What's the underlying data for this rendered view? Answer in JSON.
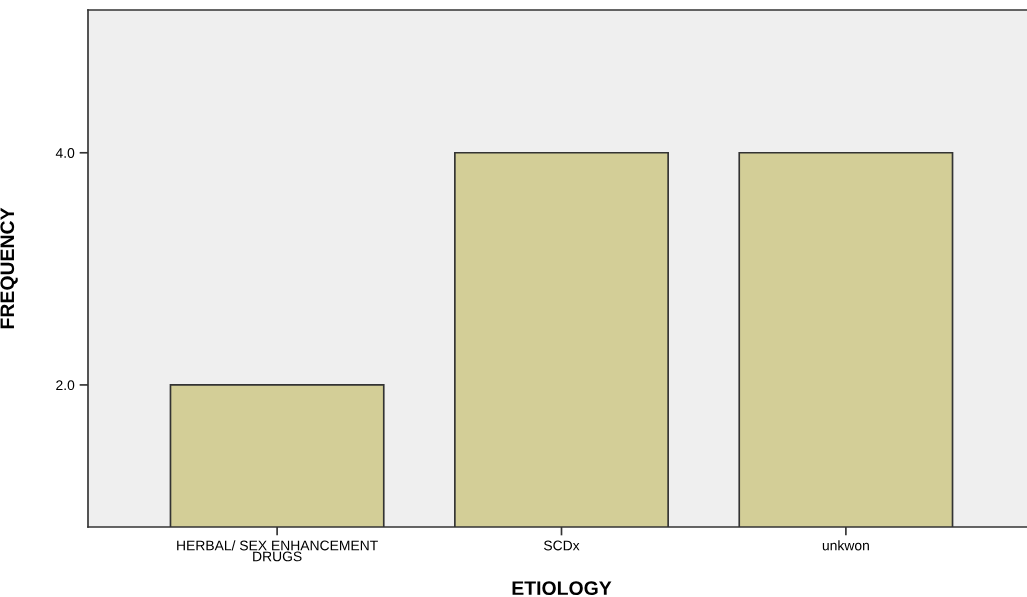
{
  "chart_data": {
    "type": "bar",
    "xlabel": "ETIOLOGY",
    "ylabel": "FREQUENCY",
    "categories": [
      "HERBAL/ SEX ENHANCEMENT\nDRUGS",
      "SCDx",
      "unkwon"
    ],
    "values": [
      2,
      4,
      4
    ],
    "color": "#d3ce97",
    "ylim": [
      0.776,
      5.23
    ],
    "yticks": [
      {
        "value": 2,
        "label": "2.0"
      },
      {
        "value": 4,
        "label": "4.0"
      }
    ],
    "grid": false,
    "legend": false
  }
}
